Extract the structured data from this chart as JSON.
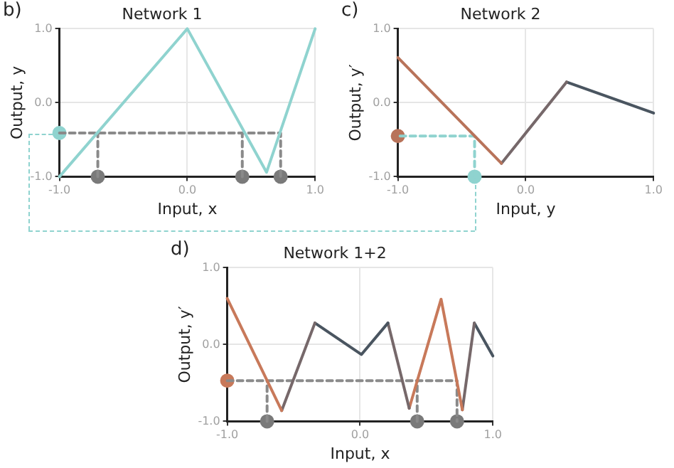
{
  "chart_data": [
    {
      "type": "line",
      "title": "Network 1",
      "xlabel": "Input, x",
      "ylabel": "Output, y",
      "annotations": [
        "b)"
      ],
      "xlim": [
        -1,
        1
      ],
      "ylim": [
        -1,
        1
      ],
      "xticks": [
        {
          "value": -1,
          "label": "-1.0"
        },
        {
          "value": 0,
          "label": "0.0"
        },
        {
          "value": 1,
          "label": "1.0"
        }
      ],
      "yticks": [
        {
          "value": -1,
          "label": "-1.0"
        },
        {
          "value": 0,
          "label": "0.0"
        },
        {
          "value": 1,
          "label": "1.0"
        }
      ],
      "grid": true,
      "legend": false,
      "series": [
        {
          "color": "#8fd3cf",
          "x": [
            -1,
            0,
            0.62,
            1
          ],
          "values": [
            -1,
            1,
            -0.94,
            1
          ]
        },
        {
          "line_style": "dashed",
          "color": "#8a8a8a",
          "x": [
            -1,
            0.73,
            0.73
          ],
          "values": [
            -0.41,
            -0.41,
            -1
          ]
        },
        {
          "line_style": "dashed",
          "color": "#8a8a8a",
          "x": [
            -0.7,
            -0.7
          ],
          "values": [
            -1,
            -0.41
          ]
        },
        {
          "line_style": "dashed",
          "color": "#8a8a8a",
          "x": [
            0.43,
            0.43
          ],
          "values": [
            -1,
            -0.41
          ]
        },
        {
          "type": "scatter",
          "marker": "circle",
          "color": "#7a7a7a",
          "x": [
            -0.7,
            0.43,
            0.73
          ],
          "values": [
            -1,
            -1,
            -1
          ]
        },
        {
          "type": "scatter",
          "marker": "circle",
          "color": "#8fd3cf",
          "x": [
            -1
          ],
          "values": [
            -0.41
          ]
        }
      ]
    },
    {
      "type": "line",
      "title": "Network 2",
      "xlabel": "Input, y",
      "ylabel": "Output, y′",
      "annotations": [
        "c)"
      ],
      "xlim": [
        -1,
        1
      ],
      "ylim": [
        -1,
        1
      ],
      "xticks": [
        {
          "value": -1,
          "label": "-1.0"
        },
        {
          "value": 0,
          "label": "0.0"
        },
        {
          "value": 1,
          "label": "1.0"
        }
      ],
      "yticks": [
        {
          "value": -1,
          "label": "-1.0"
        },
        {
          "value": 0,
          "label": "0.0"
        },
        {
          "value": 1,
          "label": "1.0"
        }
      ],
      "grid": true,
      "legend": false,
      "series": [
        {
          "color": "#b8735a",
          "x": [
            -1,
            -0.19
          ],
          "values": [
            0.61,
            -0.82
          ]
        },
        {
          "color": "#76686a",
          "x": [
            -0.19,
            0.32
          ],
          "values": [
            -0.82,
            0.28
          ]
        },
        {
          "color": "#4a5560",
          "x": [
            0.32,
            1
          ],
          "values": [
            0.28,
            -0.14
          ]
        },
        {
          "line_style": "dashed",
          "color": "#8fd3cf",
          "x": [
            -0.4,
            -0.4,
            -1
          ],
          "values": [
            -1,
            -0.45,
            -0.45
          ]
        },
        {
          "type": "scatter",
          "marker": "circle",
          "color": "#8fd3cf",
          "x": [
            -0.4
          ],
          "values": [
            -1
          ]
        },
        {
          "type": "scatter",
          "marker": "circle",
          "color": "#b8735a",
          "x": [
            -1
          ],
          "values": [
            -0.45
          ]
        }
      ]
    },
    {
      "type": "line",
      "title": "Network 1+2",
      "xlabel": "Input, x",
      "ylabel": "Output, y′",
      "annotations": [
        "d)"
      ],
      "xlim": [
        -1,
        1
      ],
      "ylim": [
        -1,
        1
      ],
      "xticks": [
        {
          "value": -1,
          "label": "-1.0"
        },
        {
          "value": 0,
          "label": "0.0"
        },
        {
          "value": 1,
          "label": "1.0"
        }
      ],
      "yticks": [
        {
          "value": -1,
          "label": "-1.0"
        },
        {
          "value": 0,
          "label": "0.0"
        },
        {
          "value": 1,
          "label": "1.0"
        }
      ],
      "grid": true,
      "legend": false,
      "series": [
        {
          "color": "#c8795a",
          "x": [
            -1,
            -0.59
          ],
          "values": [
            0.6,
            -0.86
          ]
        },
        {
          "color": "#76686a",
          "x": [
            -0.59,
            -0.34
          ],
          "values": [
            -0.86,
            0.28
          ]
        },
        {
          "color": "#4a5560",
          "x": [
            -0.34,
            0.01,
            0.21
          ],
          "values": [
            0.28,
            -0.13,
            0.28
          ]
        },
        {
          "color": "#76686a",
          "x": [
            0.21,
            0.37
          ],
          "values": [
            0.28,
            -0.83
          ]
        },
        {
          "color": "#c8795a",
          "x": [
            0.37,
            0.61,
            0.77
          ],
          "values": [
            -0.83,
            0.59,
            -0.85
          ]
        },
        {
          "color": "#76686a",
          "x": [
            0.77,
            0.86
          ],
          "values": [
            -0.85,
            0.28
          ]
        },
        {
          "color": "#4a5560",
          "x": [
            0.86,
            1
          ],
          "values": [
            0.28,
            -0.15
          ]
        },
        {
          "line_style": "dashed",
          "color": "#8a8a8a",
          "x": [
            -1,
            0.73,
            0.73
          ],
          "values": [
            -0.47,
            -0.47,
            -1
          ]
        },
        {
          "line_style": "dashed",
          "color": "#8a8a8a",
          "x": [
            -0.7,
            -0.7
          ],
          "values": [
            -1,
            -0.47
          ]
        },
        {
          "line_style": "dashed",
          "color": "#8a8a8a",
          "x": [
            0.43,
            0.43
          ],
          "values": [
            -1,
            -0.47
          ]
        },
        {
          "type": "scatter",
          "marker": "circle",
          "color": "#7a7a7a",
          "x": [
            -0.7,
            0.43,
            0.73
          ],
          "values": [
            -1,
            -1,
            -1
          ]
        },
        {
          "type": "scatter",
          "marker": "circle",
          "color": "#c8795a",
          "x": [
            -1
          ],
          "values": [
            -0.47
          ]
        }
      ]
    }
  ]
}
